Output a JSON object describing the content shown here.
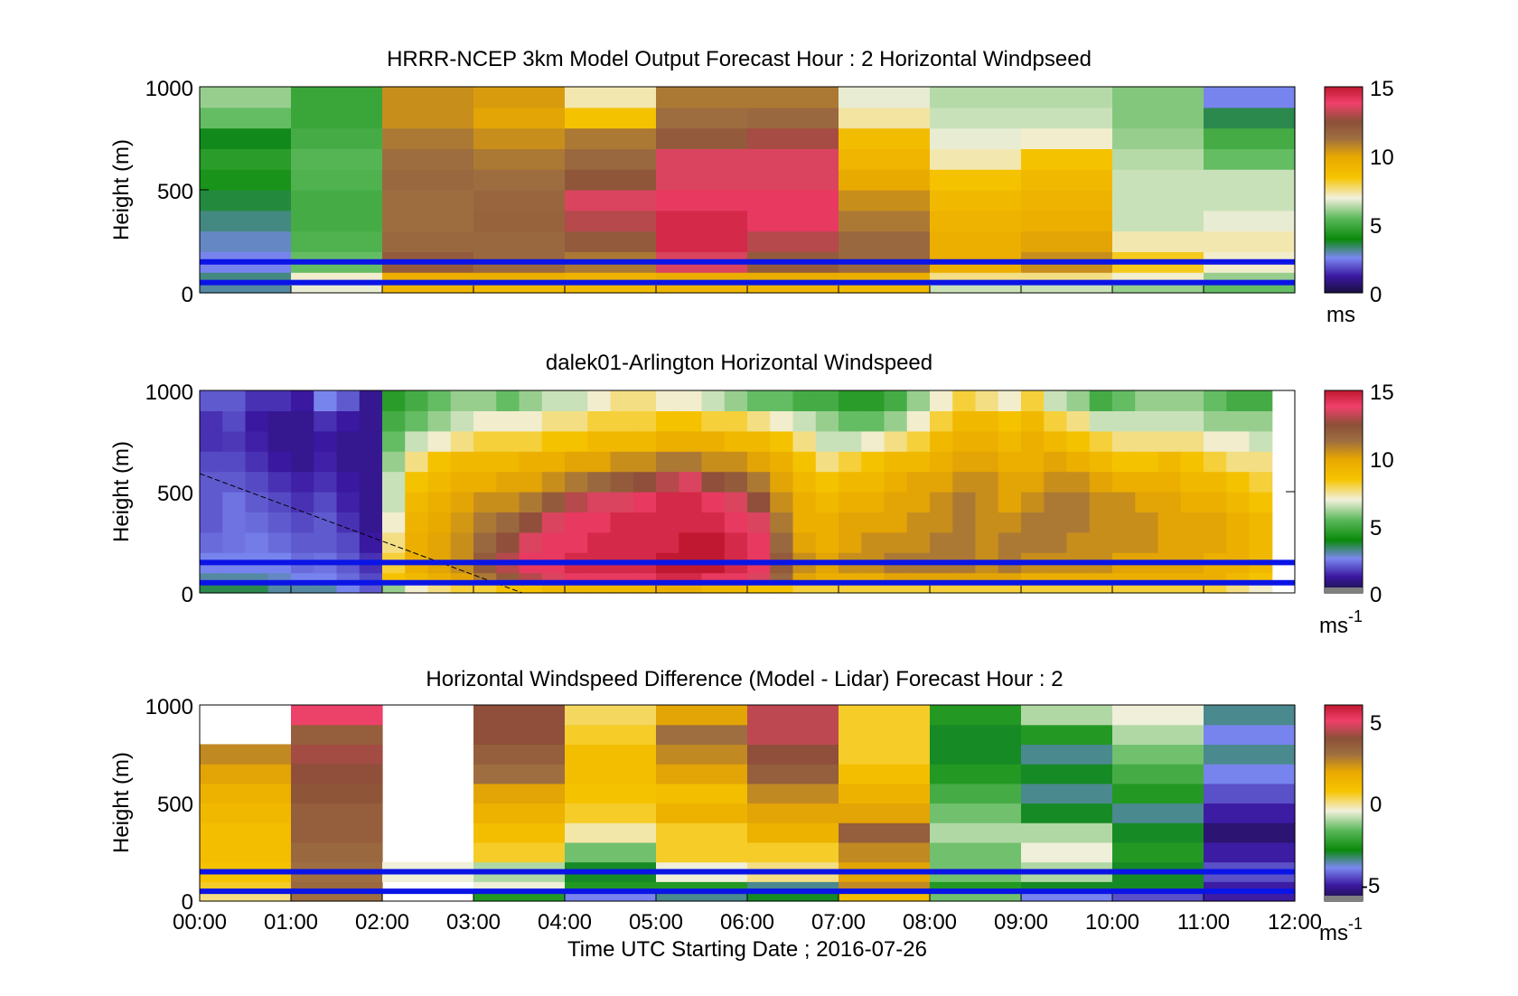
{
  "figure": {
    "xlabel": "Time UTC  Starting Date ; 2016-07-26",
    "x_ticks": [
      "00:00",
      "01:00",
      "02:00",
      "03:00",
      "04:00",
      "05:00",
      "06:00",
      "07:00",
      "08:00",
      "09:00",
      "10:00",
      "11:00",
      "12:00"
    ]
  },
  "chart_data": [
    {
      "type": "heatmap",
      "title": "HRRR-NCEP 3km Model Output   Forecast Hour : 2 Horizontal Windpseed",
      "ylabel": "Height (m)",
      "y_ticks": [
        "0",
        "500",
        "1000"
      ],
      "ylim": [
        0,
        1000
      ],
      "xlim_hours": [
        0,
        12
      ],
      "colorbar": {
        "ticks": [
          "0",
          "5",
          "10",
          "15"
        ],
        "range": [
          0,
          15
        ],
        "unit": "ms"
      },
      "columns_hours": [
        0,
        1,
        2,
        3,
        4,
        5,
        6,
        7,
        8,
        9,
        10,
        11
      ],
      "heights_m": [
        25,
        75,
        150,
        250,
        350,
        450,
        550,
        650,
        750,
        850,
        950
      ],
      "values": [
        [
          3.0,
          3.2,
          2.5,
          2.8,
          3.2,
          3.6,
          4.2,
          4.5,
          3.8,
          5.5,
          6.0
        ],
        [
          6.8,
          7.0,
          5.5,
          5.2,
          5.0,
          5.0,
          5.2,
          5.3,
          5.0,
          4.8,
          4.8
        ],
        [
          9.2,
          9.5,
          12.0,
          11.5,
          11.3,
          11.3,
          11.5,
          11.3,
          11.0,
          10.5,
          10.5
        ],
        [
          9.0,
          9.5,
          11.5,
          11.5,
          11.7,
          11.6,
          11.3,
          11.0,
          10.5,
          10.0,
          10.2
        ],
        [
          9.0,
          9.3,
          11.0,
          12.0,
          13.0,
          13.5,
          12.2,
          11.5,
          11.0,
          8.5,
          7.2
        ],
        [
          9.2,
          9.6,
          13.5,
          14.5,
          14.5,
          14.0,
          13.5,
          13.5,
          12.0,
          11.3,
          11.0
        ],
        [
          9.2,
          9.6,
          12.0,
          13.0,
          14.0,
          14.0,
          13.5,
          13.5,
          12.8,
          11.5,
          11.0
        ],
        [
          9.0,
          9.5,
          11.5,
          11.5,
          11.0,
          10.5,
          9.8,
          9.2,
          8.8,
          7.3,
          6.8
        ],
        [
          6.5,
          7.5,
          9.5,
          9.5,
          9.3,
          9.0,
          8.5,
          7.2,
          6.8,
          6.5,
          6.3
        ],
        [
          6.5,
          7.5,
          10.5,
          10.0,
          9.5,
          9.3,
          9.0,
          8.5,
          7.0,
          6.5,
          6.3
        ],
        [
          6.0,
          7.0,
          8.2,
          7.2,
          6.5,
          6.5,
          6.5,
          6.3,
          6.0,
          5.8,
          5.8
        ],
        [
          5.5,
          6.0,
          7.0,
          7.2,
          6.8,
          6.5,
          6.5,
          5.5,
          5.0,
          3.5,
          2.5
        ]
      ]
    },
    {
      "type": "heatmap",
      "title": "dalek01-Arlington  Horizontal Windspeed",
      "ylabel": "Height (m)",
      "y_ticks": [
        "0",
        "500",
        "1000"
      ],
      "ylim": [
        0,
        1000
      ],
      "xlim_hours": [
        0,
        12
      ],
      "colorbar": {
        "ticks": [
          "0",
          "5",
          "10",
          "15"
        ],
        "range": [
          0,
          15
        ],
        "unit": "ms",
        "unit_exp": "-1"
      },
      "column_width_hours": 0.25,
      "heights_m": [
        25,
        75,
        150,
        250,
        350,
        450,
        550,
        650,
        750,
        850,
        950
      ],
      "profiles": [
        {
          "t": 0.0,
          "v": [
            3.5,
            3.0,
            2.5,
            2.2,
            2.0,
            2.0,
            2.0,
            1.8,
            1.5,
            1.5,
            2.0
          ]
        },
        {
          "t": 0.25,
          "v": [
            3.5,
            3.0,
            2.5,
            2.3,
            2.3,
            2.3,
            2.0,
            1.8,
            1.6,
            1.8,
            2.0
          ]
        },
        {
          "t": 0.5,
          "v": [
            3.5,
            3.0,
            2.5,
            2.4,
            2.2,
            2.0,
            1.8,
            1.5,
            1.3,
            1.2,
            1.5
          ]
        },
        {
          "t": 0.75,
          "v": [
            3.0,
            2.8,
            2.5,
            2.2,
            2.0,
            1.8,
            1.5,
            1.2,
            1.0,
            1.0,
            1.5
          ]
        },
        {
          "t": 1.0,
          "v": [
            3.0,
            2.5,
            2.2,
            2.0,
            1.8,
            1.5,
            1.3,
            1.0,
            1.0,
            1.0,
            1.2
          ]
        },
        {
          "t": 1.25,
          "v": [
            3.0,
            2.5,
            2.3,
            2.0,
            2.0,
            1.8,
            1.5,
            1.3,
            1.2,
            1.5,
            2.5
          ]
        },
        {
          "t": 1.5,
          "v": [
            2.5,
            2.2,
            2.0,
            1.8,
            1.5,
            1.3,
            1.2,
            1.0,
            1.0,
            1.2,
            2.0
          ]
        },
        {
          "t": 1.75,
          "v": [
            2.0,
            1.8,
            1.5,
            1.2,
            1.0,
            1.0,
            1.0,
            1.0,
            1.0,
            1.0,
            1.0
          ]
        },
        {
          "t": 2.0,
          "v": [
            6.0,
            8.5,
            8.0,
            7.5,
            7.0,
            6.5,
            6.5,
            6.0,
            5.5,
            5.0,
            4.5
          ]
        },
        {
          "t": 2.25,
          "v": [
            7.0,
            9.0,
            9.5,
            9.5,
            9.3,
            9.0,
            8.5,
            7.5,
            6.5,
            5.5,
            5.0
          ]
        },
        {
          "t": 2.5,
          "v": [
            7.5,
            9.5,
            10.0,
            10.0,
            9.8,
            9.5,
            9.0,
            8.5,
            7.0,
            6.0,
            5.5
          ]
        },
        {
          "t": 2.75,
          "v": [
            8.0,
            10.0,
            10.5,
            10.5,
            10.3,
            10.0,
            9.5,
            9.0,
            7.5,
            6.5,
            6.0
          ]
        },
        {
          "t": 3.0,
          "v": [
            8.0,
            11.0,
            12.0,
            11.5,
            11.0,
            10.5,
            9.5,
            9.0,
            8.0,
            7.0,
            6.0
          ]
        },
        {
          "t": 3.25,
          "v": [
            8.5,
            12.0,
            13.0,
            12.5,
            11.5,
            10.5,
            10.0,
            9.0,
            8.0,
            7.0,
            5.5
          ]
        },
        {
          "t": 3.5,
          "v": [
            8.5,
            13.0,
            14.0,
            13.5,
            12.5,
            11.0,
            10.0,
            9.5,
            8.0,
            7.0,
            6.0
          ]
        },
        {
          "t": 3.75,
          "v": [
            9.0,
            13.5,
            14.0,
            14.0,
            13.5,
            12.0,
            10.5,
            9.5,
            8.5,
            7.5,
            6.5
          ]
        },
        {
          "t": 4.0,
          "v": [
            9.0,
            14.0,
            14.5,
            14.0,
            14.0,
            13.0,
            11.0,
            10.0,
            8.5,
            7.5,
            6.5
          ]
        },
        {
          "t": 4.25,
          "v": [
            9.0,
            14.0,
            14.5,
            14.5,
            14.0,
            13.5,
            11.5,
            10.0,
            9.0,
            8.0,
            7.0
          ]
        },
        {
          "t": 4.5,
          "v": [
            9.0,
            14.0,
            14.5,
            14.5,
            14.5,
            13.5,
            12.0,
            10.5,
            9.0,
            8.0,
            7.5
          ]
        },
        {
          "t": 4.75,
          "v": [
            9.0,
            14.0,
            14.5,
            14.5,
            14.5,
            14.0,
            12.5,
            10.5,
            9.0,
            8.0,
            7.5
          ]
        },
        {
          "t": 5.0,
          "v": [
            9.5,
            14.5,
            15.0,
            14.5,
            14.5,
            14.5,
            13.0,
            11.0,
            9.5,
            8.5,
            7.0
          ]
        },
        {
          "t": 5.25,
          "v": [
            9.5,
            14.5,
            15.0,
            15.0,
            14.5,
            14.5,
            13.5,
            11.0,
            9.5,
            8.5,
            7.0
          ]
        },
        {
          "t": 5.5,
          "v": [
            9.0,
            14.0,
            15.0,
            15.0,
            14.5,
            14.0,
            12.5,
            10.5,
            9.5,
            8.0,
            6.5
          ]
        },
        {
          "t": 5.75,
          "v": [
            9.0,
            14.0,
            14.5,
            14.5,
            14.0,
            13.5,
            12.0,
            10.5,
            9.0,
            8.0,
            6.0
          ]
        },
        {
          "t": 6.0,
          "v": [
            8.5,
            13.5,
            14.0,
            14.0,
            13.5,
            12.5,
            11.0,
            10.0,
            9.0,
            7.5,
            5.5
          ]
        },
        {
          "t": 6.25,
          "v": [
            8.5,
            11.5,
            12.0,
            11.5,
            11.0,
            10.5,
            10.0,
            9.5,
            8.5,
            7.0,
            5.5
          ]
        },
        {
          "t": 6.5,
          "v": [
            8.0,
            10.0,
            10.5,
            10.0,
            9.5,
            9.5,
            9.0,
            8.5,
            7.5,
            6.5,
            5.0
          ]
        },
        {
          "t": 6.75,
          "v": [
            8.0,
            9.5,
            10.0,
            9.5,
            9.5,
            9.0,
            8.5,
            7.5,
            6.5,
            6.0,
            5.0
          ]
        },
        {
          "t": 7.0,
          "v": [
            8.0,
            9.5,
            10.5,
            10.0,
            10.0,
            9.5,
            9.0,
            8.0,
            6.5,
            5.5,
            4.5
          ]
        },
        {
          "t": 7.25,
          "v": [
            8.0,
            9.5,
            10.5,
            10.5,
            10.0,
            9.5,
            9.0,
            8.5,
            7.0,
            5.5,
            4.5
          ]
        },
        {
          "t": 7.5,
          "v": [
            8.0,
            10.0,
            11.0,
            10.5,
            10.0,
            10.0,
            9.5,
            9.0,
            7.5,
            6.0,
            5.0
          ]
        },
        {
          "t": 7.75,
          "v": [
            8.0,
            10.0,
            11.0,
            10.5,
            10.5,
            10.0,
            10.0,
            9.0,
            8.0,
            7.0,
            6.0
          ]
        },
        {
          "t": 8.0,
          "v": [
            8.0,
            10.0,
            11.0,
            11.0,
            10.5,
            10.5,
            10.0,
            9.5,
            9.0,
            8.0,
            7.0
          ]
        },
        {
          "t": 8.25,
          "v": [
            8.0,
            10.0,
            11.0,
            11.0,
            11.0,
            11.0,
            10.5,
            10.0,
            9.5,
            9.0,
            8.0
          ]
        },
        {
          "t": 8.5,
          "v": [
            8.0,
            10.0,
            10.5,
            10.5,
            10.5,
            10.5,
            10.5,
            10.0,
            9.5,
            9.0,
            7.5
          ]
        },
        {
          "t": 8.75,
          "v": [
            8.0,
            10.0,
            11.0,
            11.0,
            10.5,
            10.0,
            10.0,
            9.5,
            9.0,
            8.5,
            7.0
          ]
        },
        {
          "t": 9.0,
          "v": [
            8.0,
            9.5,
            10.5,
            11.0,
            11.0,
            10.5,
            10.0,
            9.5,
            9.5,
            9.0,
            8.0
          ]
        },
        {
          "t": 9.25,
          "v": [
            8.0,
            9.5,
            10.5,
            11.0,
            11.0,
            11.0,
            10.5,
            10.0,
            9.0,
            8.0,
            6.5
          ]
        },
        {
          "t": 9.5,
          "v": [
            8.0,
            9.5,
            10.5,
            10.5,
            11.0,
            11.0,
            10.5,
            9.5,
            8.5,
            7.5,
            6.0
          ]
        },
        {
          "t": 9.75,
          "v": [
            8.0,
            9.5,
            10.5,
            10.5,
            10.5,
            10.5,
            10.0,
            9.0,
            8.0,
            6.5,
            5.0
          ]
        },
        {
          "t": 10.0,
          "v": [
            8.0,
            9.5,
            10.0,
            10.5,
            10.5,
            10.5,
            9.5,
            8.5,
            7.5,
            6.5,
            5.5
          ]
        },
        {
          "t": 10.25,
          "v": [
            8.0,
            9.5,
            10.0,
            10.5,
            10.5,
            10.0,
            9.5,
            8.5,
            7.5,
            6.5,
            6.0
          ]
        },
        {
          "t": 10.5,
          "v": [
            8.0,
            9.5,
            10.0,
            10.0,
            10.0,
            10.0,
            9.5,
            9.0,
            7.5,
            6.5,
            6.0
          ]
        },
        {
          "t": 10.75,
          "v": [
            8.0,
            9.5,
            10.0,
            10.0,
            10.0,
            9.5,
            9.0,
            8.5,
            7.5,
            6.5,
            6.0
          ]
        },
        {
          "t": 11.0,
          "v": [
            8.0,
            9.5,
            9.5,
            10.0,
            10.0,
            9.5,
            9.0,
            8.0,
            7.0,
            6.0,
            5.5
          ]
        },
        {
          "t": 11.25,
          "v": [
            7.5,
            9.0,
            9.5,
            9.5,
            9.5,
            9.0,
            8.5,
            7.5,
            7.0,
            6.0,
            5.0
          ]
        },
        {
          "t": 11.5,
          "v": [
            7.0,
            8.5,
            9.0,
            9.0,
            9.0,
            8.5,
            8.0,
            7.5,
            6.5,
            6.0,
            5.0
          ]
        }
      ]
    },
    {
      "type": "heatmap",
      "title": "Horizontal Windspeed Difference (Model - Lidar) Forecast Hour : 2",
      "ylabel": "Height (m)",
      "y_ticks": [
        "0",
        "500",
        "1000"
      ],
      "ylim": [
        0,
        1000
      ],
      "xlim_hours": [
        0,
        12
      ],
      "colorbar": {
        "ticks": [
          "-5",
          "0",
          "5"
        ],
        "range": [
          -6,
          6
        ],
        "unit": "ms",
        "unit_exp": "-1"
      },
      "columns_hours": [
        0,
        1,
        2,
        3,
        4,
        5,
        6,
        7,
        8,
        9,
        10,
        11
      ],
      "heights_m": [
        25,
        75,
        150,
        250,
        350,
        450,
        550,
        650,
        750,
        850,
        950
      ],
      "values": [
        [
          0.0,
          0.5,
          0.8,
          1.0,
          1.0,
          1.2,
          1.5,
          2.0,
          2.5,
          null,
          null
        ],
        [
          3.0,
          3.2,
          3.0,
          3.2,
          3.5,
          3.5,
          3.8,
          4.0,
          4.2,
          3.5,
          5.0
        ],
        [
          null,
          null,
          -0.5,
          null,
          null,
          null,
          null,
          null,
          null,
          null,
          null
        ],
        [
          -2.5,
          -0.5,
          -1.0,
          0.5,
          1.0,
          1.5,
          2.0,
          3.0,
          3.5,
          4.0,
          4.0
        ],
        [
          -4.0,
          -2.5,
          -3.0,
          -1.5,
          -0.2,
          0.5,
          0.8,
          1.0,
          1.0,
          0.5,
          0.2
        ],
        [
          -3.5,
          -2.5,
          -0.5,
          0.5,
          0.5,
          1.5,
          1.0,
          2.0,
          2.5,
          3.0,
          2.0
        ],
        [
          -3.0,
          -3.5,
          0.0,
          0.5,
          1.5,
          2.0,
          2.5,
          3.5,
          4.0,
          4.5,
          4.5
        ],
        [
          1.0,
          2.5,
          2.0,
          2.5,
          3.5,
          2.0,
          1.5,
          1.0,
          0.5,
          0.5,
          0.5
        ],
        [
          -1.5,
          -2.5,
          -1.5,
          -1.5,
          -1.0,
          -1.5,
          -2.0,
          -2.5,
          -3.0,
          -3.0,
          -2.5
        ],
        [
          -4.0,
          -3.0,
          -1.0,
          -0.5,
          -1.0,
          -3.0,
          -3.5,
          -3.0,
          -3.5,
          -2.5,
          -1.0
        ],
        [
          -4.5,
          -3.0,
          -3.0,
          -2.5,
          -3.0,
          -3.5,
          -2.5,
          -2.0,
          -1.5,
          -1.0,
          -0.5
        ],
        [
          -5.0,
          -5.0,
          -4.5,
          -5.0,
          -5.5,
          -5.0,
          -4.5,
          -4.0,
          -3.5,
          -4.0,
          -3.5
        ]
      ]
    }
  ],
  "colors": {
    "overlay_line": "#0a14e6",
    "missing_gray": "#808080",
    "axis": "#000000"
  }
}
